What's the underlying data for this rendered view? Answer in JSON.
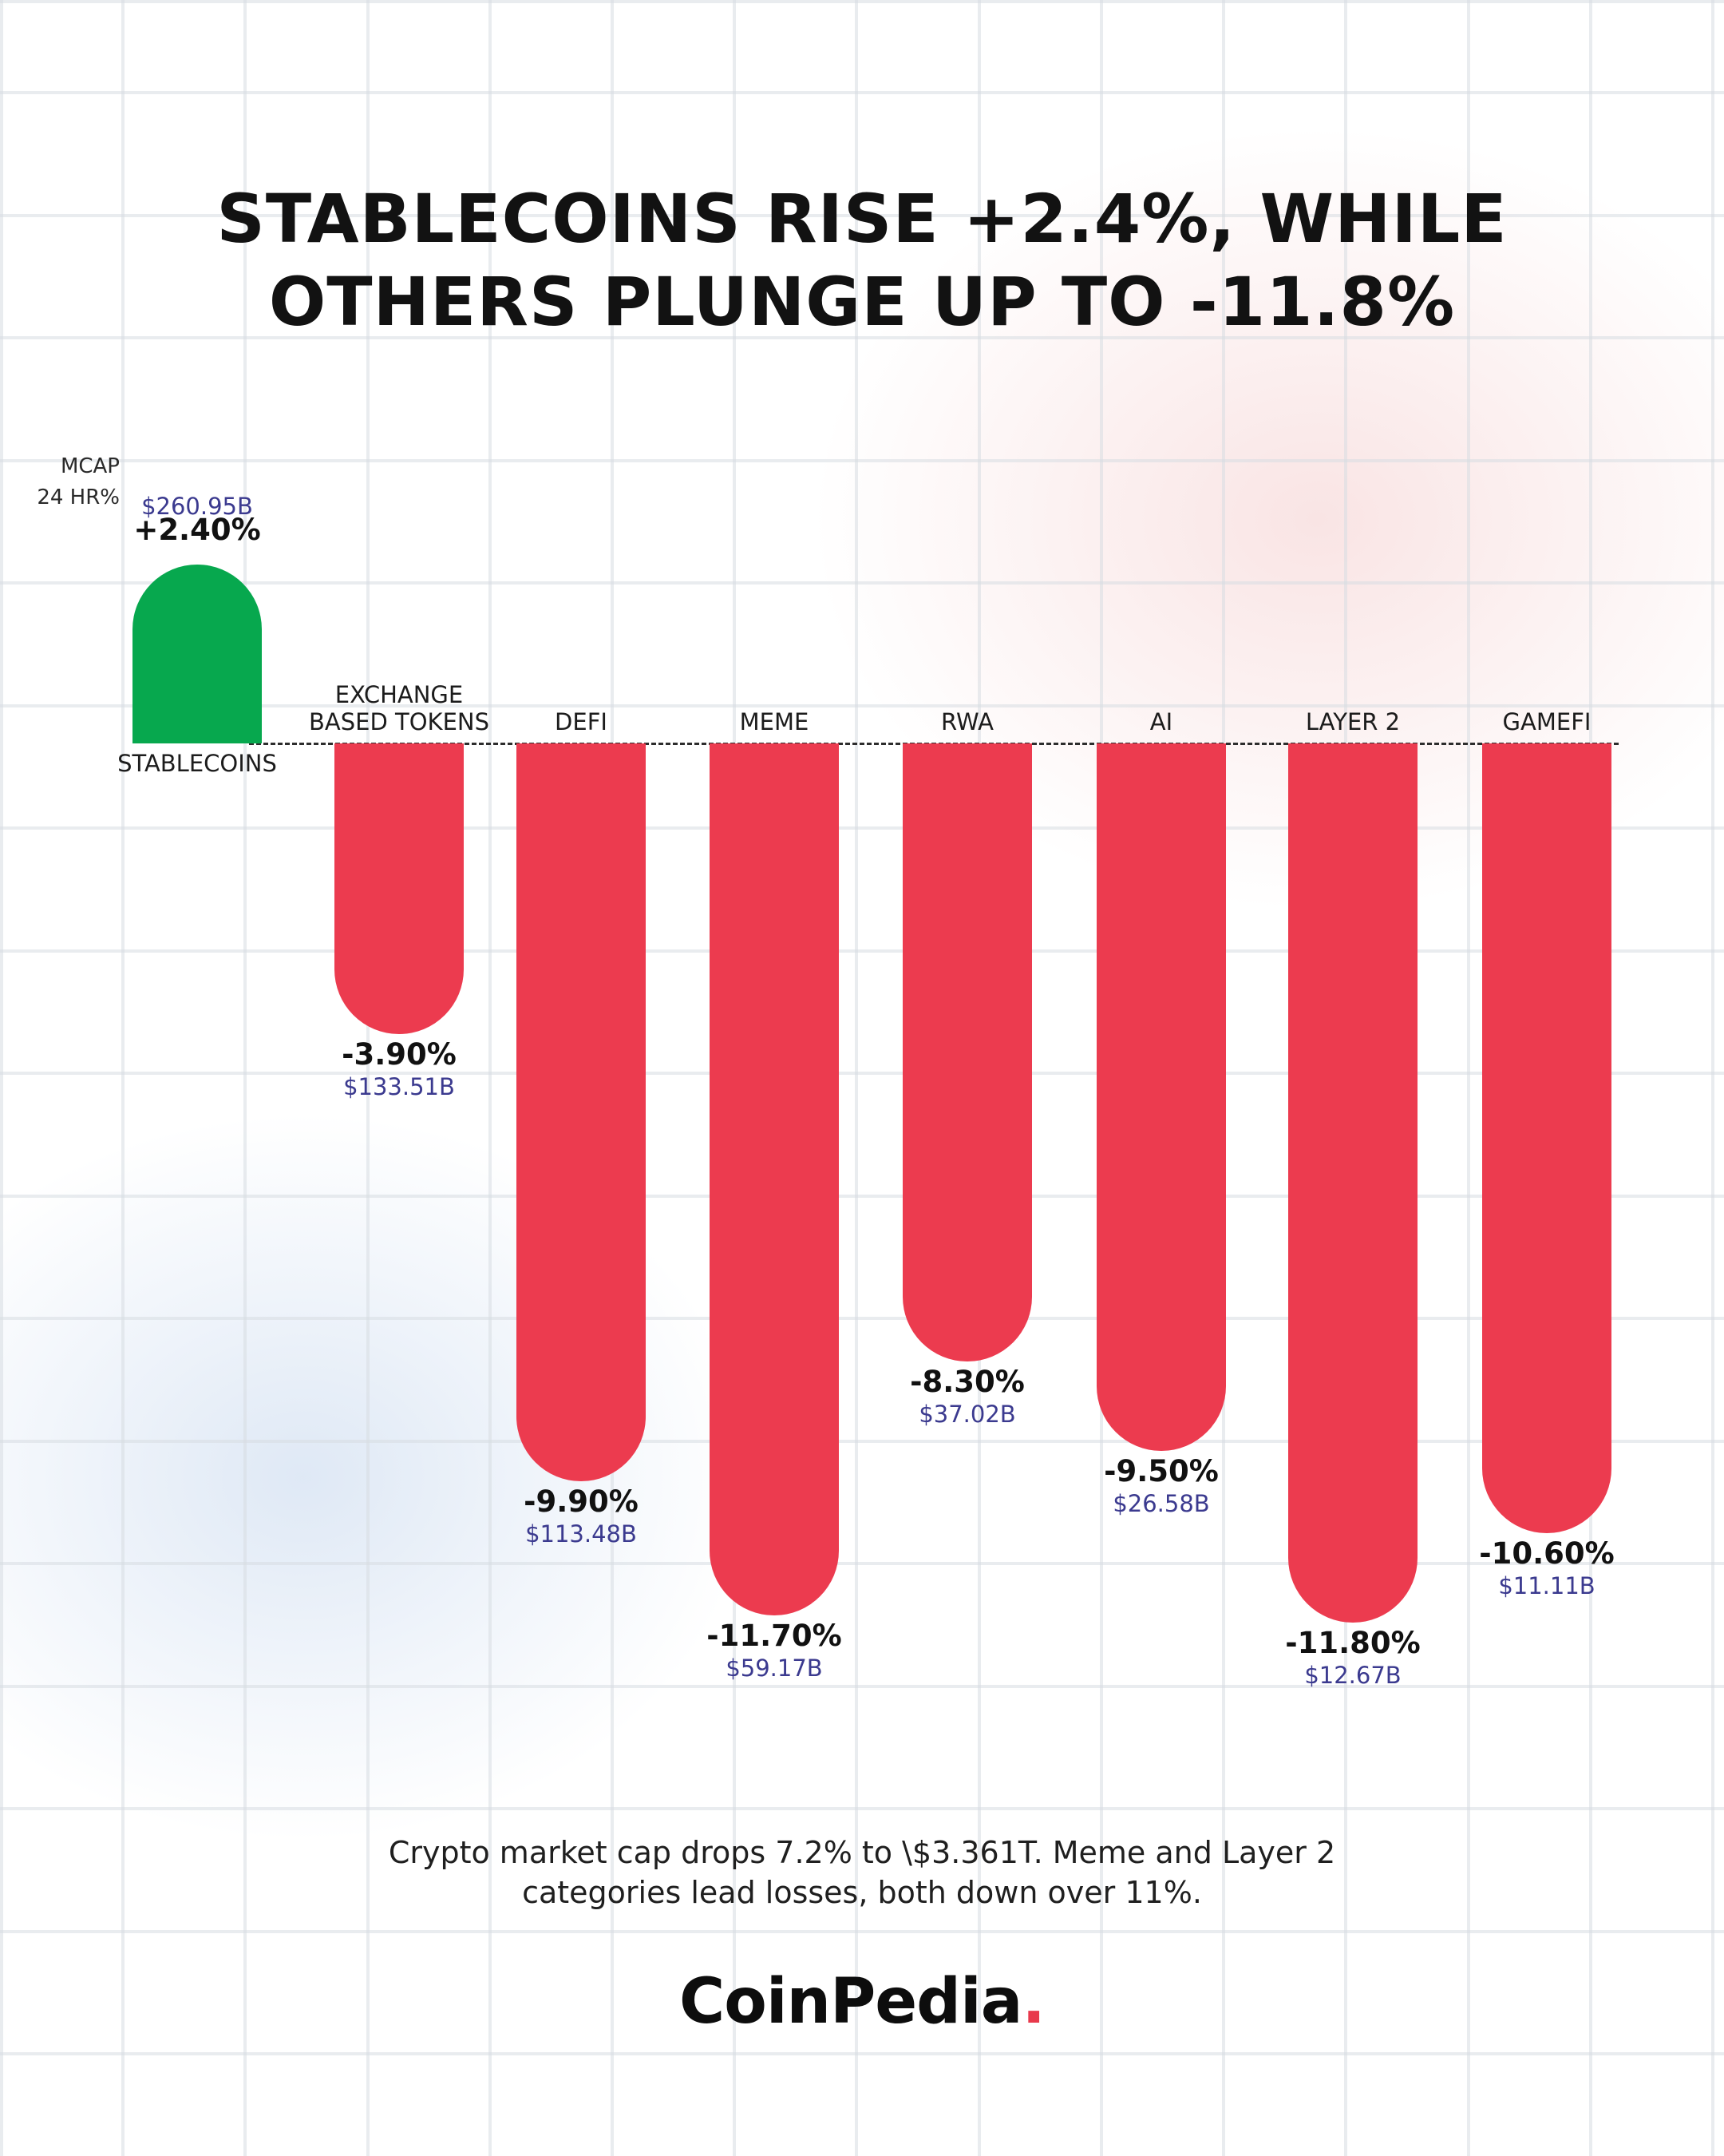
{
  "title_lines": [
    "STABLECOINS RISE +2.4%, WHILE",
    "OTHERS PLUNGE UP TO -11.8%"
  ],
  "legend_labels": {
    "mcap": "MCAP",
    "change": "24 HR%"
  },
  "caption_lines": [
    "Crypto market cap drops 7.2% to \\$3.361T. Meme and Layer 2",
    "categories lead losses, both down over 11%."
  ],
  "logo": {
    "text": "CoinPedia",
    "dot": "."
  },
  "colors": {
    "positive": "#07a84e",
    "negative": "#ec3b4f",
    "mcap_text": "#3b3a8f"
  },
  "chart_data": {
    "type": "bar",
    "title": "STABLECOINS RISE +2.4%, WHILE OTHERS PLUNGE UP TO -11.8%",
    "categories": [
      "STABLECOINS",
      "EXCHANGE\nBASED TOKENS",
      "DEFI",
      "MEME",
      "RWA",
      "AI",
      "LAYER 2",
      "GAMEFI"
    ],
    "series": [
      {
        "name": "24 HR%",
        "values": [
          2.4,
          -3.9,
          -9.9,
          -11.7,
          -8.3,
          -9.5,
          -11.8,
          -10.6
        ]
      }
    ],
    "value_labels": [
      "+2.40%",
      "-3.90%",
      "-9.90%",
      "-11.70%",
      "-8.30%",
      "-9.50%",
      "-11.80%",
      "-10.60%"
    ],
    "mcap_labels": [
      "$260.95B",
      "$133.51B",
      "$113.48B",
      "$59.17B",
      "$37.02B",
      "$26.58B",
      "$12.67B",
      "$11.11B"
    ],
    "mcap_values_billion": [
      260.95,
      133.51,
      113.48,
      59.17,
      37.02,
      26.58,
      12.67,
      11.11
    ],
    "unit": "%",
    "grid": false
  }
}
